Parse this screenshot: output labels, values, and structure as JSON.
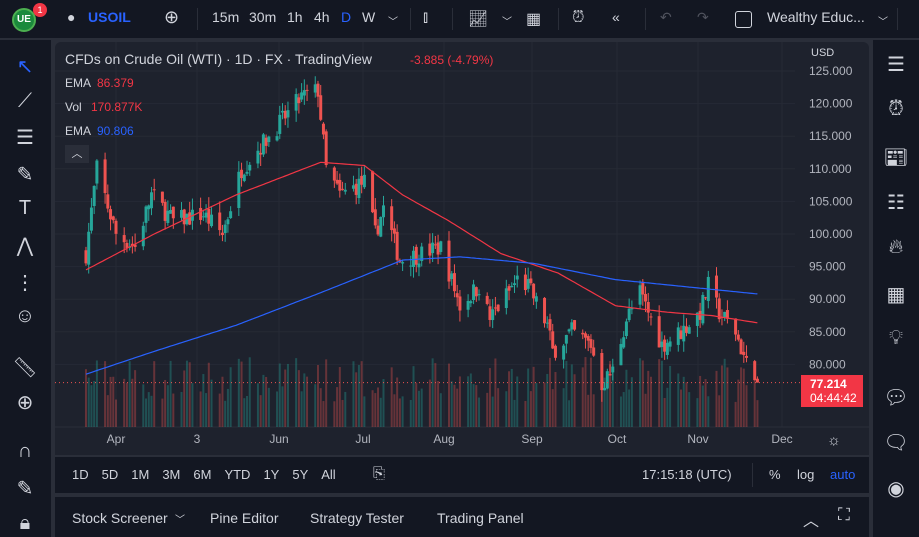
{
  "toolbar": {
    "symbol": "USOIL",
    "notif": "1",
    "intervals": [
      "15m",
      "30m",
      "1h",
      "4h",
      "D",
      "W"
    ],
    "active_interval": "D",
    "layout": "Wealthy Educ...",
    "accent": "#2962ff"
  },
  "legend": {
    "title": "CFDs on Crude Oil (WTI) · 1D · FX  · TradingView",
    "change": "-3.885 (-4.79%)",
    "ema1_label": "EMA",
    "ema1_value": "86.379",
    "vol_label": "Vol",
    "vol_value": "170.877K",
    "ema2_label": "EMA",
    "ema2_value": "90.806"
  },
  "price_axis": {
    "currency": "USD",
    "ticks": [
      "125.000",
      "120.000",
      "115.000",
      "110.000",
      "105.000",
      "100.000",
      "95.000",
      "90.000",
      "85.000",
      "80.000"
    ],
    "last_price": "77.214",
    "countdown": "04:44:42"
  },
  "time_axis": [
    "Apr",
    "3",
    "Jun",
    "Jul",
    "Aug",
    "Sep",
    "Oct",
    "Nov",
    "Dec"
  ],
  "ranges": [
    "1D",
    "5D",
    "1M",
    "3M",
    "6M",
    "YTD",
    "1Y",
    "5Y",
    "All"
  ],
  "clock": "17:15:18 (UTC)",
  "scale": {
    "percent": "%",
    "log": "log",
    "auto": "auto"
  },
  "bottom_tabs": [
    "Stock Screener",
    "Pine Editor",
    "Strategy Tester",
    "Trading Panel"
  ],
  "colors": {
    "up": "#26a69a",
    "down": "#ef5350",
    "ema_fast": "#f23645",
    "ema_slow": "#2962ff"
  },
  "chart_data": {
    "type": "candlestick",
    "ylim": [
      75,
      126
    ],
    "close_anchors": [
      [
        "2022-03-21",
        97
      ],
      [
        "2022-03-25",
        110
      ],
      [
        "2022-04-01",
        100
      ],
      [
        "2022-04-08",
        98
      ],
      [
        "2022-04-14",
        106
      ],
      [
        "2022-04-22",
        102
      ],
      [
        "2022-05-03",
        103
      ],
      [
        "2022-05-10",
        100
      ],
      [
        "2022-05-17",
        110
      ],
      [
        "2022-05-27",
        115
      ],
      [
        "2022-06-08",
        121
      ],
      [
        "2022-06-14",
        122
      ],
      [
        "2022-06-17",
        110
      ],
      [
        "2022-06-22",
        106
      ],
      [
        "2022-07-01",
        108
      ],
      [
        "2022-07-05",
        100
      ],
      [
        "2022-07-08",
        104
      ],
      [
        "2022-07-14",
        96
      ],
      [
        "2022-07-22",
        97
      ],
      [
        "2022-07-29",
        98
      ],
      [
        "2022-08-05",
        89
      ],
      [
        "2022-08-12",
        92
      ],
      [
        "2022-08-16",
        87
      ],
      [
        "2022-08-26",
        93
      ],
      [
        "2022-08-30",
        92
      ],
      [
        "2022-09-06",
        86
      ],
      [
        "2022-09-08",
        82
      ],
      [
        "2022-09-15",
        85
      ],
      [
        "2022-09-22",
        83
      ],
      [
        "2022-09-26",
        77
      ],
      [
        "2022-09-30",
        79
      ],
      [
        "2022-10-05",
        87
      ],
      [
        "2022-10-10",
        91
      ],
      [
        "2022-10-18",
        83
      ],
      [
        "2022-10-25",
        85
      ],
      [
        "2022-11-01",
        88
      ],
      [
        "2022-11-04",
        92
      ],
      [
        "2022-11-08",
        88
      ],
      [
        "2022-11-14",
        85
      ],
      [
        "2022-11-18",
        80
      ],
      [
        "2022-11-21",
        79
      ],
      [
        "2022-11-22",
        77.214
      ]
    ],
    "ema_fast": [
      [
        "2022-03-21",
        94.5
      ],
      [
        "2022-04-15",
        100
      ],
      [
        "2022-05-15",
        106
      ],
      [
        "2022-06-15",
        111
      ],
      [
        "2022-07-01",
        110.5
      ],
      [
        "2022-07-15",
        106
      ],
      [
        "2022-08-01",
        102
      ],
      [
        "2022-08-20",
        97
      ],
      [
        "2022-09-10",
        94
      ],
      [
        "2022-10-01",
        89
      ],
      [
        "2022-10-20",
        88
      ],
      [
        "2022-11-05",
        87.5
      ],
      [
        "2022-11-22",
        86.379
      ]
    ],
    "ema_slow": [
      [
        "2022-03-21",
        78.5
      ],
      [
        "2022-04-15",
        82
      ],
      [
        "2022-05-15",
        86
      ],
      [
        "2022-06-15",
        91
      ],
      [
        "2022-07-15",
        96
      ],
      [
        "2022-08-05",
        96.5
      ],
      [
        "2022-09-01",
        95.5
      ],
      [
        "2022-10-01",
        93
      ],
      [
        "2022-10-20",
        92.2
      ],
      [
        "2022-11-22",
        90.806
      ]
    ]
  }
}
